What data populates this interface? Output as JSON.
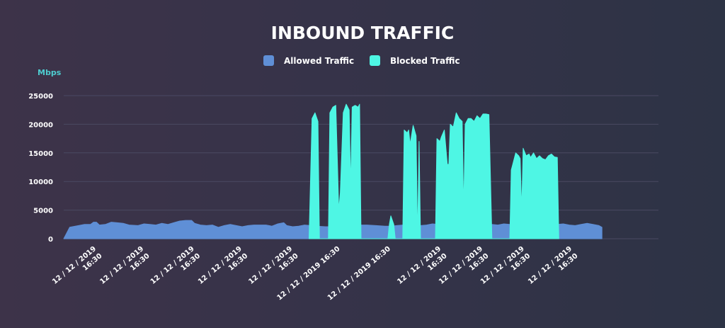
{
  "chart_data": {
    "type": "area",
    "title": "INBOUND TRAFFIC",
    "ylabel": "Mbps",
    "ylim": [
      0,
      25000
    ],
    "yticks": [
      0,
      5000,
      10000,
      15000,
      20000,
      25000
    ],
    "grid": true,
    "legend_position": "top-center",
    "xlim": [
      0,
      200
    ],
    "x_ticks": [
      {
        "x": 11,
        "line1": "12 / 12 / 2019",
        "line2": "16:30"
      },
      {
        "x": 27,
        "line1": "12 / 12 / 2019",
        "line2": "16:30"
      },
      {
        "x": 44,
        "line1": "12 / 12 / 2019",
        "line2": "16:30"
      },
      {
        "x": 60,
        "line1": "12 / 12 / 2019",
        "line2": "16:30"
      },
      {
        "x": 77,
        "line1": "12 / 12 / 2019",
        "line2": "16:30"
      },
      {
        "x": 93,
        "line1": "12 / 12 / 2019 16:30",
        "line2": ""
      },
      {
        "x": 110,
        "line1": "12 / 12 / 2019 16:30",
        "line2": ""
      },
      {
        "x": 127,
        "line1": "12 / 12 / 2019",
        "line2": "16:30"
      },
      {
        "x": 141,
        "line1": "12 / 12 / 2019",
        "line2": "16:30"
      },
      {
        "x": 155,
        "line1": "12 / 12 / 2019",
        "line2": "16:30"
      },
      {
        "x": 171,
        "line1": "12 / 12 / 2019",
        "line2": "16:30"
      }
    ],
    "series": [
      {
        "name": "Allowed Traffic",
        "color": "#5f8fd6",
        "points": [
          [
            0,
            0
          ],
          [
            2,
            2000
          ],
          [
            5,
            2300
          ],
          [
            7,
            2500
          ],
          [
            9,
            2500
          ],
          [
            10,
            2900
          ],
          [
            11,
            2900
          ],
          [
            12,
            2400
          ],
          [
            14,
            2500
          ],
          [
            16,
            2900
          ],
          [
            18,
            2800
          ],
          [
            20,
            2700
          ],
          [
            22,
            2400
          ],
          [
            25,
            2300
          ],
          [
            27,
            2600
          ],
          [
            29,
            2500
          ],
          [
            31,
            2400
          ],
          [
            33,
            2700
          ],
          [
            35,
            2500
          ],
          [
            37,
            2800
          ],
          [
            39,
            3100
          ],
          [
            41,
            3200
          ],
          [
            43,
            3200
          ],
          [
            44,
            2700
          ],
          [
            46,
            2400
          ],
          [
            48,
            2300
          ],
          [
            50,
            2400
          ],
          [
            52,
            2000
          ],
          [
            54,
            2300
          ],
          [
            56,
            2500
          ],
          [
            58,
            2300
          ],
          [
            60,
            2100
          ],
          [
            62,
            2300
          ],
          [
            64,
            2400
          ],
          [
            66,
            2400
          ],
          [
            68,
            2400
          ],
          [
            70,
            2200
          ],
          [
            72,
            2600
          ],
          [
            74,
            2800
          ],
          [
            75,
            2300
          ],
          [
            77,
            2100
          ],
          [
            79,
            2200
          ],
          [
            81,
            2400
          ],
          [
            83,
            2300
          ],
          [
            85,
            2200
          ],
          [
            88,
            2100
          ],
          [
            90,
            2100
          ],
          [
            92,
            2400
          ],
          [
            94,
            2200
          ],
          [
            96,
            2300
          ],
          [
            98,
            2400
          ],
          [
            100,
            2400
          ],
          [
            102,
            2400
          ],
          [
            105,
            2300
          ],
          [
            108,
            2200
          ],
          [
            110,
            2200
          ],
          [
            112,
            2300
          ],
          [
            114,
            2400
          ],
          [
            116,
            2300
          ],
          [
            118,
            2200
          ],
          [
            120,
            2300
          ],
          [
            122,
            2400
          ],
          [
            124,
            2600
          ],
          [
            126,
            2500
          ],
          [
            128,
            2400
          ],
          [
            130,
            2300
          ],
          [
            132,
            2400
          ],
          [
            134,
            2400
          ],
          [
            136,
            2500
          ],
          [
            138,
            2400
          ],
          [
            140,
            2500
          ],
          [
            142,
            2400
          ],
          [
            144,
            2500
          ],
          [
            146,
            2400
          ],
          [
            148,
            2600
          ],
          [
            150,
            2500
          ],
          [
            152,
            2400
          ],
          [
            154,
            2500
          ],
          [
            156,
            2400
          ],
          [
            158,
            2500
          ],
          [
            160,
            2600
          ],
          [
            162,
            2400
          ],
          [
            164,
            2300
          ],
          [
            166,
            2500
          ],
          [
            168,
            2600
          ],
          [
            170,
            2400
          ],
          [
            172,
            2300
          ],
          [
            174,
            2500
          ],
          [
            176,
            2700
          ],
          [
            178,
            2500
          ],
          [
            180,
            2300
          ],
          [
            181,
            2000
          ],
          [
            181,
            0
          ]
        ]
      },
      {
        "name": "Blocked Traffic",
        "color": "#4ef6e4",
        "points": [
          [
            82.5,
            0
          ],
          [
            83.5,
            21000
          ],
          [
            84.5,
            22000
          ],
          [
            85.5,
            20500
          ],
          [
            86,
            0
          ],
          [
            89,
            0
          ],
          [
            89.5,
            22000
          ],
          [
            90.5,
            23000
          ],
          [
            91.5,
            23300
          ],
          [
            92.5,
            5000
          ],
          [
            93,
            8000
          ],
          [
            94,
            22000
          ],
          [
            95,
            23500
          ],
          [
            96,
            22500
          ],
          [
            96.5,
            9000
          ],
          [
            97,
            23000
          ],
          [
            98,
            23300
          ],
          [
            99,
            23000
          ],
          [
            99.5,
            23500
          ],
          [
            100,
            0
          ],
          [
            109,
            0
          ],
          [
            109.5,
            2500
          ],
          [
            110,
            4000
          ],
          [
            111,
            2500
          ],
          [
            111.5,
            0
          ],
          [
            114,
            0
          ],
          [
            114.5,
            19000
          ],
          [
            115.5,
            18500
          ],
          [
            116,
            19000
          ],
          [
            116.5,
            16500
          ],
          [
            117.5,
            19800
          ],
          [
            118.5,
            18000
          ],
          [
            119,
            0
          ],
          [
            119.5,
            17000
          ],
          [
            120,
            0
          ],
          [
            125,
            0
          ],
          [
            125.5,
            17500
          ],
          [
            126.5,
            17000
          ],
          [
            127,
            17800
          ],
          [
            128,
            19000
          ],
          [
            129,
            13000
          ],
          [
            129.5,
            13000
          ],
          [
            130,
            20000
          ],
          [
            131,
            19500
          ],
          [
            132,
            22000
          ],
          [
            133,
            21000
          ],
          [
            134,
            20500
          ],
          [
            134.5,
            5000
          ],
          [
            135,
            20000
          ],
          [
            136,
            21000
          ],
          [
            137,
            21000
          ],
          [
            138,
            20500
          ],
          [
            139,
            21500
          ],
          [
            140,
            21000
          ],
          [
            141,
            21800
          ],
          [
            142,
            21800
          ],
          [
            143,
            21700
          ],
          [
            144,
            0
          ],
          [
            150,
            0
          ],
          [
            150.5,
            12000
          ],
          [
            151,
            13000
          ],
          [
            152,
            15000
          ],
          [
            153,
            14500
          ],
          [
            153.5,
            14000
          ],
          [
            154,
            5000
          ],
          [
            154.5,
            15800
          ],
          [
            155.5,
            14500
          ],
          [
            156.5,
            14800
          ],
          [
            157,
            14200
          ],
          [
            158,
            15000
          ],
          [
            159,
            14000
          ],
          [
            160,
            14500
          ],
          [
            161,
            14000
          ],
          [
            162,
            13800
          ],
          [
            163,
            14500
          ],
          [
            164,
            14800
          ],
          [
            165,
            14300
          ],
          [
            166,
            14200
          ],
          [
            166.5,
            0
          ]
        ]
      }
    ]
  }
}
